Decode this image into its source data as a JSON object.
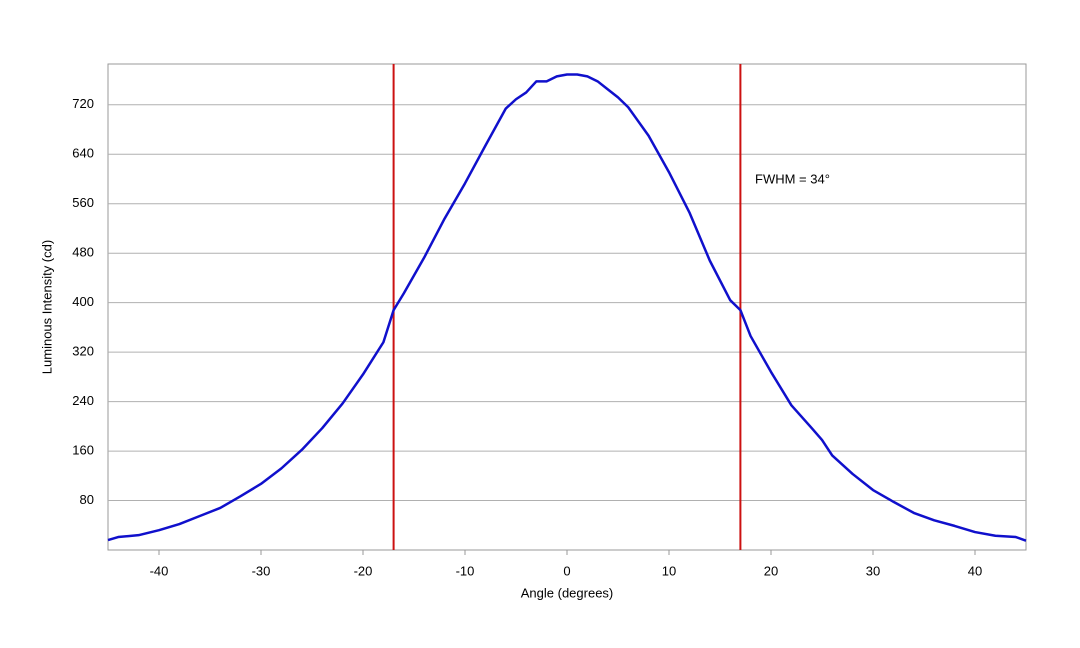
{
  "chart_data": {
    "type": "line",
    "xlabel": "Angle (degrees)",
    "ylabel": "Luminous Intensity (cd)",
    "x": [
      -45,
      -44,
      -42,
      -40,
      -38,
      -36,
      -34,
      -32,
      -30,
      -28,
      -26,
      -24,
      -22,
      -20,
      -18,
      -17,
      -16,
      -14,
      -12,
      -10,
      -8,
      -6,
      -5,
      -4,
      -3,
      -2,
      -1,
      0,
      1,
      2,
      3,
      4,
      5,
      6,
      8,
      10,
      12,
      14,
      16,
      17,
      18,
      20,
      22,
      24,
      25,
      26,
      28,
      30,
      32,
      34,
      36,
      38,
      40,
      42,
      44,
      45
    ],
    "series": [
      {
        "name": "Luminous Intensity",
        "color": "#1010cc",
        "values": [
          16,
          21,
          24,
          32,
          42,
          55,
          68,
          87,
          107,
          132,
          162,
          197,
          237,
          284,
          336,
          388,
          415,
          473,
          536,
          593,
          654,
          714,
          729,
          740,
          758,
          758,
          766,
          769,
          769,
          766,
          758,
          745,
          732,
          716,
          670,
          611,
          546,
          468,
          404,
          388,
          346,
          288,
          234,
          197,
          178,
          153,
          123,
          97,
          78,
          60,
          48,
          39,
          29,
          23,
          21,
          15
        ]
      }
    ],
    "markers": {
      "color": "#cc1111",
      "values": [
        -17,
        17
      ]
    },
    "annotation": "FWHM = 34°",
    "xlim": [
      -45,
      45
    ],
    "ylim": [
      0,
      786
    ],
    "xticks": [
      -40,
      -30,
      -20,
      -10,
      0,
      10,
      20,
      30,
      40
    ],
    "yticks": [
      80,
      160,
      240,
      320,
      400,
      480,
      560,
      640,
      720
    ],
    "grid": true
  }
}
